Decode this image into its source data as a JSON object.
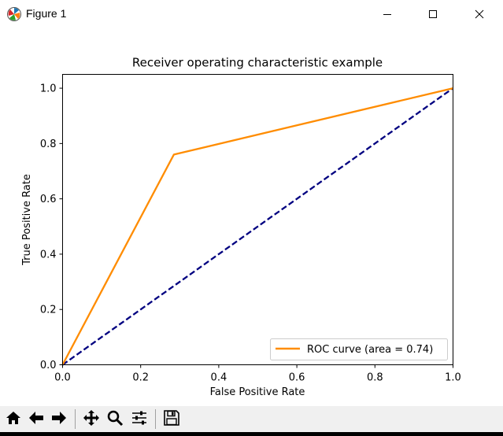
{
  "window": {
    "title": "Figure 1",
    "icon": "matplotlib-icon",
    "controls": [
      "minimize-icon",
      "maximize-icon",
      "close-icon"
    ]
  },
  "chart_data": {
    "type": "line",
    "title": "Receiver operating characteristic example",
    "xlabel": "False Positive Rate",
    "ylabel": "True Positive Rate",
    "xlim": [
      0.0,
      1.0
    ],
    "ylim": [
      0.0,
      1.05
    ],
    "xticks": [
      "0.0",
      "0.2",
      "0.4",
      "0.6",
      "0.8",
      "1.0"
    ],
    "yticks": [
      "0.0",
      "0.2",
      "0.4",
      "0.6",
      "0.8",
      "1.0"
    ],
    "grid": false,
    "legend_position": "lower-right",
    "series": [
      {
        "name": "ROC curve (area = 0.74)",
        "color": "#ff8c00",
        "style": "solid",
        "x": [
          0.0,
          0.285,
          1.0
        ],
        "y": [
          0.0,
          0.76,
          1.0
        ]
      },
      {
        "name": "",
        "color": "#000080",
        "style": "dashed",
        "x": [
          0.0,
          1.0
        ],
        "y": [
          0.0,
          1.0
        ]
      }
    ]
  },
  "toolbar": {
    "buttons": [
      {
        "name": "home-button",
        "icon": "home-icon"
      },
      {
        "name": "back-button",
        "icon": "arrow-left-icon"
      },
      {
        "name": "forward-button",
        "icon": "arrow-right-icon"
      },
      {
        "name": "pan-button",
        "icon": "move-icon"
      },
      {
        "name": "zoom-button",
        "icon": "magnifier-icon"
      },
      {
        "name": "configure-subplots-button",
        "icon": "sliders-icon"
      },
      {
        "name": "save-button",
        "icon": "floppy-disk-icon"
      }
    ]
  }
}
